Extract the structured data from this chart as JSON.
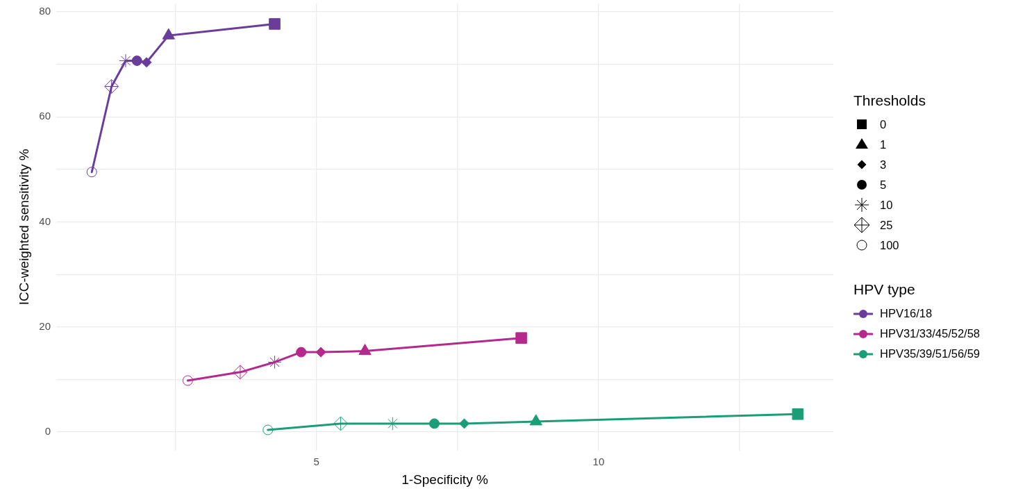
{
  "chart_data": {
    "type": "line",
    "xlabel": "1-Specificity %",
    "ylabel": "ICC-weighted sensitivity %",
    "legend_title": [
      "Thresholds",
      "HPV type"
    ],
    "legend": "right",
    "grid": true,
    "annotations": [
      "0",
      "1",
      "3",
      "5",
      "10",
      "25",
      "100"
    ],
    "xlim": [
      0.39,
      14.16
    ],
    "ylim": [
      -3.5,
      81.6
    ],
    "xticks": [
      {
        "value": 2.5,
        "label": null
      },
      5,
      {
        "value": 7.5,
        "label": null
      },
      10,
      {
        "value": 12.5,
        "label": null
      }
    ],
    "yticks": [
      0,
      {
        "value": 10,
        "label": null
      },
      20,
      {
        "value": 30,
        "label": null
      },
      40,
      {
        "value": 50,
        "label": null
      },
      60,
      {
        "value": 70,
        "label": null
      },
      80
    ],
    "series": [
      {
        "type": "scatter",
        "marker": "square",
        "x": [
          4.26,
          8.63,
          13.53
        ],
        "values": [
          77.7,
          17.9,
          3.4
        ],
        "colors": [
          "#6a3d9a",
          "#b5298d",
          "#1b9e77"
        ]
      },
      {
        "type": "scatter",
        "marker": "triangle",
        "x": [
          2.38,
          5.86,
          8.89
        ],
        "values": [
          75.5,
          15.4,
          2.0
        ],
        "colors": [
          "#6a3d9a",
          "#b5298d",
          "#1b9e77"
        ]
      },
      {
        "type": "scatter",
        "marker": "diamond",
        "x": [
          1.99,
          5.08,
          7.62
        ],
        "values": [
          70.4,
          15.2,
          1.6
        ],
        "colors": [
          "#6a3d9a",
          "#b5298d",
          "#1b9e77"
        ]
      },
      {
        "type": "scatter",
        "marker": "circle",
        "x": [
          1.82,
          4.73,
          7.09
        ],
        "values": [
          70.7,
          15.2,
          1.6
        ],
        "colors": [
          "#6a3d9a",
          "#b5298d",
          "#1b9e77"
        ]
      },
      {
        "type": "scatter",
        "marker": "cross",
        "x": [
          1.62,
          4.26,
          6.35
        ],
        "values": [
          70.7,
          13.3,
          1.6
        ],
        "colors": [
          "#6a3d9a",
          "#b5298d",
          "#1b9e77"
        ]
      },
      {
        "type": "scatter",
        "marker": "diamond-plus",
        "x": [
          1.37,
          3.65,
          5.43
        ],
        "values": [
          65.8,
          11.4,
          1.6
        ],
        "colors": [
          "#6a3d9a",
          "#b5298d",
          "#1b9e77"
        ]
      },
      {
        "type": "scatter",
        "marker": "circle-open",
        "x": [
          1.02,
          2.72,
          4.14
        ],
        "values": [
          49.5,
          9.8,
          0.4
        ],
        "colors": [
          "#6a3d9a",
          "#b5298d",
          "#1b9e77"
        ]
      },
      {
        "name": "HPV16/18",
        "color": "#6a3d9a",
        "x": [
          1.02,
          1.37,
          1.62,
          1.82,
          1.99,
          2.38,
          4.26
        ],
        "values": [
          49.5,
          65.8,
          70.7,
          70.7,
          70.4,
          75.5,
          77.7
        ]
      },
      {
        "name": "HPV31/33/45/52/58",
        "color": "#b5298d",
        "x": [
          2.72,
          3.65,
          4.26,
          4.73,
          5.08,
          5.86,
          8.63
        ],
        "values": [
          9.8,
          11.4,
          13.3,
          15.2,
          15.2,
          15.4,
          17.9
        ]
      },
      {
        "name": "HPV35/39/51/56/59",
        "color": "#1b9e77",
        "x": [
          4.14,
          5.43,
          6.35,
          7.09,
          7.62,
          8.89,
          13.53
        ],
        "values": [
          0.4,
          1.6,
          1.6,
          1.6,
          1.6,
          2.0,
          3.4
        ]
      }
    ]
  }
}
